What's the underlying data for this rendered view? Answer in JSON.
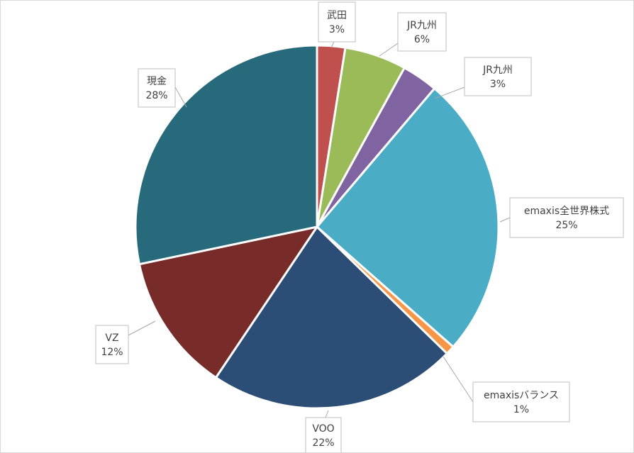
{
  "chart_data": {
    "type": "pie",
    "title": "",
    "start_angle_deg": 0,
    "direction": "clockwise",
    "legend": "none",
    "slices": [
      {
        "label": "武田",
        "value": 2.5,
        "pct_label": "3%",
        "color": "#c0504d"
      },
      {
        "label": "JR九州",
        "value": 5.5,
        "pct_label": "6%",
        "color": "#9bbb59"
      },
      {
        "label": "JR九州",
        "value": 3.2,
        "pct_label": "3%",
        "color": "#8064a2"
      },
      {
        "label": "emaxis全世界株式",
        "value": 25.3,
        "pct_label": "25%",
        "color": "#4bacc6"
      },
      {
        "label": "emaxisバランス",
        "value": 0.8,
        "pct_label": "1%",
        "color": "#f79646"
      },
      {
        "label": "VOO",
        "value": 22.1,
        "pct_label": "22%",
        "color": "#2c4d75"
      },
      {
        "label": "VZ",
        "value": 12.3,
        "pct_label": "12%",
        "color": "#772c2a"
      },
      {
        "label": "現金",
        "value": 28.3,
        "pct_label": "28%",
        "color": "#276a7c"
      }
    ]
  }
}
